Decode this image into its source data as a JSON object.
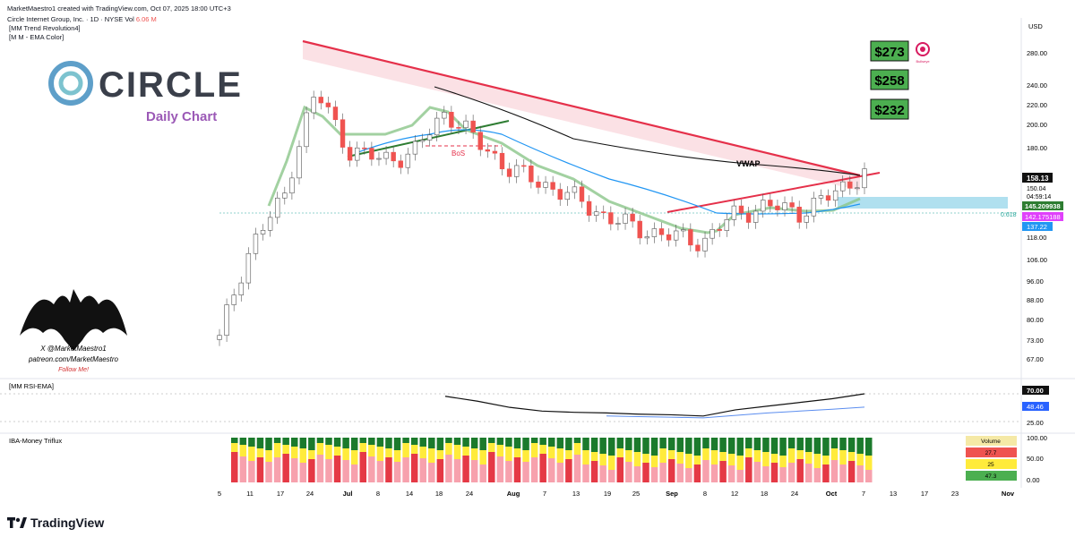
{
  "header": {
    "credit": "MarketMaestro1 created with TradingView.com, Oct 07, 2025 18:00 UTC+3",
    "symbol": "Circle Internet Group, Inc. · 1D · NYSE",
    "vol_label": "Vol",
    "vol_value": "6.06 M",
    "indicator1": "[MM Trend Revolution4]",
    "indicator2": "[M M - EMA Color]"
  },
  "logo": {
    "brand": "CIRCLE",
    "subtitle": "Daily Chart"
  },
  "watermark": {
    "line1": "X @MarketMaestro1",
    "line2": "patreon.com/MarketMaestro",
    "line3": "Follow Me!"
  },
  "targets": [
    "$273",
    "$258",
    "$232"
  ],
  "target_badge": "Bullseye",
  "annotations": {
    "vwap": "VWAP",
    "bos": "BoS",
    "fib": "0.618"
  },
  "price_axis": {
    "currency": "USD",
    "ticks": [
      "280.00",
      "240.00",
      "220.00",
      "200.00",
      "180.00",
      "150.04",
      "118.00",
      "106.00",
      "96.00",
      "88.00",
      "80.00",
      "73.00",
      "67.00"
    ],
    "labels": {
      "last": "158.13",
      "price": "150.04",
      "countdown": "04:59:14",
      "ema1": "145.209938",
      "ema2": "142.175188",
      "ema3": "137.22"
    }
  },
  "rsi": {
    "title": "[MM RSI-EMA]",
    "ticks": [
      "70.00",
      "48.46",
      "25.00"
    ],
    "value": "70.00",
    "signal": "48.46"
  },
  "triflux": {
    "title": "IBA-Money Triflux",
    "ticks": [
      "100.00",
      "50.00",
      "25.00",
      "0.00"
    ],
    "volume_box": {
      "title": "Volume",
      "rows": [
        "27.7",
        "25",
        "47.3"
      ]
    }
  },
  "time_axis": [
    "5",
    "11",
    "17",
    "24",
    "Jul",
    "8",
    "14",
    "18",
    "24",
    "Aug",
    "7",
    "13",
    "19",
    "25",
    "Sep",
    "8",
    "12",
    "18",
    "24",
    "Oct",
    "7",
    "13",
    "17",
    "23",
    "Nov"
  ],
  "footer": {
    "brand": "TradingView"
  },
  "colors": {
    "up": "#ffffff",
    "down": "#ef5350",
    "ema_green": "#8bc58a",
    "ema_pink": "#f4a0a8",
    "trend": "#e5304a",
    "support": "#2e7d32",
    "target_bg": "#4caf50",
    "vwap": "#000000",
    "blue": "#2196f3"
  },
  "chart_data": [
    {
      "type": "line",
      "title": "",
      "x_categories": [
        "5",
        "11",
        "17",
        "24",
        "Jul",
        "8",
        "14",
        "18",
        "24",
        "Aug",
        "7",
        "13",
        "19",
        "25",
        "Sep",
        "8",
        "12",
        "18",
        "24",
        "Oct",
        "7"
      ],
      "series": [
        {
          "name": "VWAP",
          "values": [
            null,
            null,
            null,
            null,
            null,
            null,
            null,
            236,
            222,
            205,
            196,
            188,
            182,
            176,
            170,
            165,
            162,
            160,
            159,
            158,
            157
          ]
        },
        {
          "values": [
            72,
            112,
            140,
            230,
            175,
            168,
            172,
            210,
            182,
            160,
            150,
            140,
            128,
            121,
            117,
            114,
            130,
            135,
            131,
            142,
            158
          ]
        }
      ],
      "ylim": [
        62,
        300
      ]
    },
    {
      "type": "line",
      "title": "",
      "ylim": [
        10,
        85
      ],
      "series": [
        {
          "values": [
            null,
            null,
            null,
            null,
            null,
            null,
            null,
            66,
            58,
            48,
            42,
            40,
            39,
            37,
            36,
            34,
            44,
            50,
            56,
            62,
            70
          ]
        },
        {
          "values": [
            null,
            null,
            null,
            null,
            null,
            null,
            null,
            null,
            null,
            null,
            null,
            null,
            34,
            33,
            32,
            31,
            35,
            39,
            42,
            45,
            48.46
          ]
        }
      ]
    },
    {
      "type": "bar",
      "title": "",
      "ylim": [
        0,
        100
      ]
    }
  ]
}
